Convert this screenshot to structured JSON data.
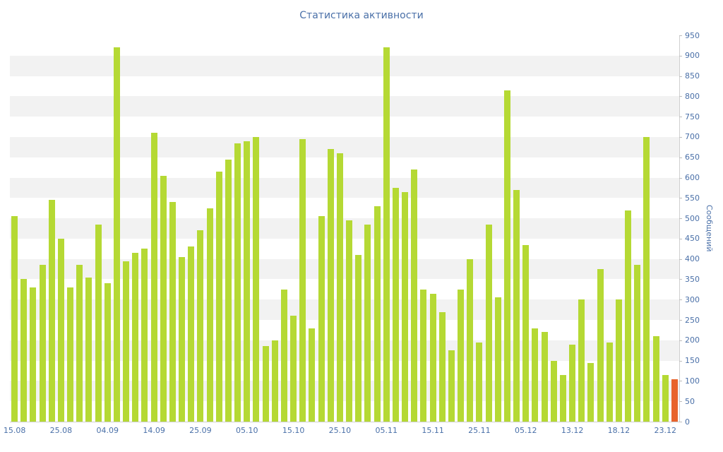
{
  "chart_data": {
    "type": "bar",
    "title": "Статистика активности",
    "ylabel": "Сообщений",
    "xlabel": "",
    "ylim": [
      0,
      950
    ],
    "y_step": 50,
    "x_tick_labels": [
      "15.08",
      "25.08",
      "04.09",
      "14.09",
      "25.09",
      "05.10",
      "15.10",
      "25.10",
      "05.11",
      "15.11",
      "25.11",
      "05.12",
      "13.12",
      "18.12",
      "23.12"
    ],
    "values": [
      505,
      350,
      330,
      385,
      545,
      450,
      330,
      385,
      355,
      485,
      340,
      920,
      395,
      415,
      425,
      710,
      605,
      540,
      405,
      430,
      470,
      525,
      615,
      645,
      685,
      690,
      700,
      185,
      200,
      325,
      260,
      695,
      230,
      505,
      670,
      660,
      495,
      410,
      485,
      530,
      920,
      575,
      565,
      620,
      325,
      315,
      270,
      175,
      325,
      400,
      195,
      485,
      305,
      815,
      570,
      435,
      230,
      220,
      150,
      115,
      190,
      300,
      145,
      375,
      195,
      300,
      520,
      385,
      700,
      210,
      115,
      105
    ],
    "bar_color": "#b5d934",
    "highlight_color": "#e8632c",
    "text_color": "#4a70a8",
    "band_color": "#f2f2f2",
    "axis_color": "#cfcfcf",
    "legend_position": "none",
    "grid": "alternating horizontal bands, 50-unit steps"
  }
}
